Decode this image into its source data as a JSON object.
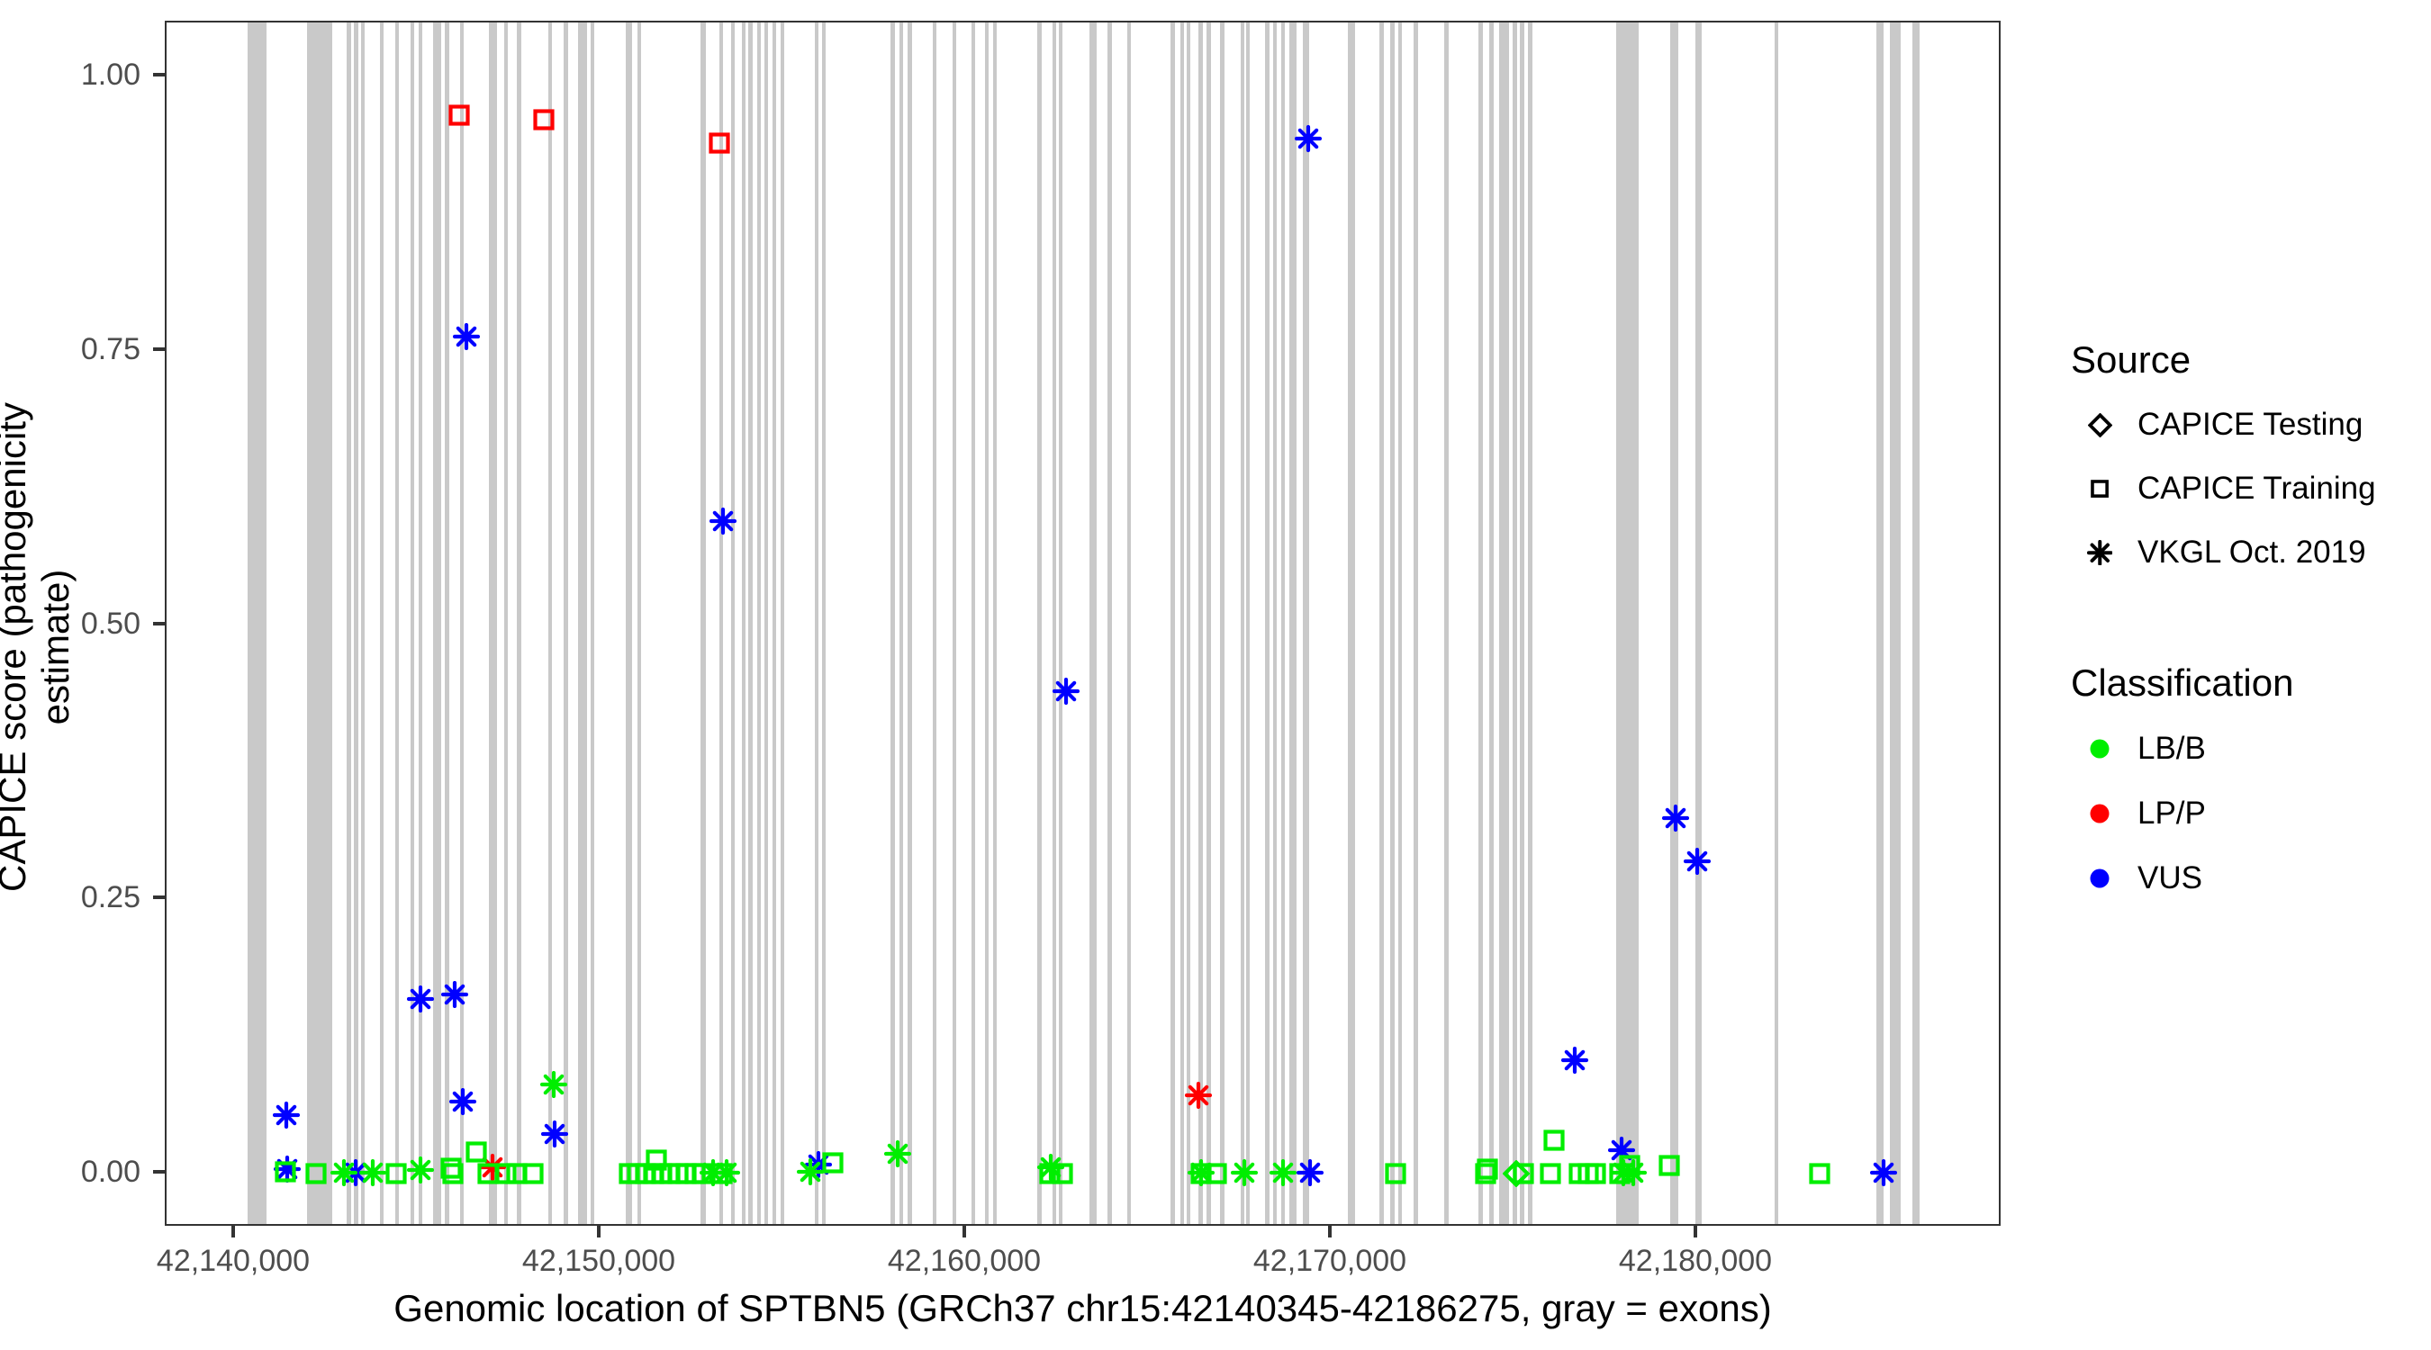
{
  "chart_data": {
    "type": "scatter",
    "title": "",
    "xlabel": "Genomic location of SPTBN5 (GRCh37 chr15:42140345-42186275, gray = exons)",
    "ylabel": "CAPICE score (pathogenicity estimate)",
    "x_domain": [
      42138128,
      42188350
    ],
    "y_domain": [
      -0.0492,
      1.0492
    ],
    "grid": false,
    "x_ticks": [
      {
        "pos": 42140000,
        "label": "42,140,000"
      },
      {
        "pos": 42150000,
        "label": "42,150,000"
      },
      {
        "pos": 42160000,
        "label": "42,160,000"
      },
      {
        "pos": 42170000,
        "label": "42,170,000"
      },
      {
        "pos": 42180000,
        "label": "42,180,000"
      }
    ],
    "y_ticks": [
      {
        "value": 0.0,
        "label": "0.00"
      },
      {
        "value": 0.25,
        "label": "0.25"
      },
      {
        "value": 0.5,
        "label": "0.50"
      },
      {
        "value": 0.75,
        "label": "0.75"
      },
      {
        "value": 1.0,
        "label": "1.00"
      }
    ],
    "exon_color": "#C9C9C9",
    "classification_colors": {
      "LB/B": "#00EE00",
      "LP/P": "#FF0000",
      "VUS": "#0000FF"
    },
    "marker_by_source": {
      "testing": "diamond",
      "training": "square",
      "vkgl": "asterisk"
    },
    "exons": [
      [
        42140350,
        42140860
      ],
      [
        42141970,
        42142660
      ],
      [
        42143050,
        42143180
      ],
      [
        42143250,
        42143375
      ],
      [
        42143450,
        42143550
      ],
      [
        42143965,
        42144065
      ],
      [
        42144385,
        42144460
      ],
      [
        42144800,
        42144900
      ],
      [
        42145025,
        42145125
      ],
      [
        42145420,
        42145640
      ],
      [
        42145740,
        42145860
      ],
      [
        42146155,
        42146255
      ],
      [
        42146945,
        42147165
      ],
      [
        42147365,
        42147465
      ],
      [
        42147710,
        42147830
      ],
      [
        42148570,
        42148670
      ],
      [
        42148990,
        42149115
      ],
      [
        42149385,
        42149630
      ],
      [
        42149730,
        42149830
      ],
      [
        42150690,
        42150860
      ],
      [
        42151010,
        42151110
      ],
      [
        42152735,
        42152880
      ],
      [
        42153250,
        42153350
      ],
      [
        42153570,
        42153670
      ],
      [
        42153865,
        42153965
      ],
      [
        42154040,
        42154165
      ],
      [
        42154285,
        42154385
      ],
      [
        42154485,
        42154555
      ],
      [
        42154705,
        42154805
      ],
      [
        42154925,
        42155025
      ],
      [
        42155860,
        42155960
      ],
      [
        42156060,
        42156155
      ],
      [
        42157930,
        42158055
      ],
      [
        42158175,
        42158275
      ],
      [
        42158400,
        42158520
      ],
      [
        42159090,
        42159190
      ],
      [
        42159630,
        42159730
      ],
      [
        42160150,
        42160245
      ],
      [
        42160515,
        42160615
      ],
      [
        42160740,
        42160835
      ],
      [
        42161945,
        42162070
      ],
      [
        42162365,
        42162465
      ],
      [
        42162535,
        42162635
      ],
      [
        42163375,
        42163570
      ],
      [
        42163865,
        42163990
      ],
      [
        42164410,
        42164505
      ],
      [
        42165590,
        42165715
      ],
      [
        42165860,
        42165960
      ],
      [
        42166035,
        42166130
      ],
      [
        42166355,
        42166480
      ],
      [
        42166575,
        42166700
      ],
      [
        42166945,
        42167070
      ],
      [
        42167510,
        42167610
      ],
      [
        42167660,
        42167760
      ],
      [
        42168175,
        42168300
      ],
      [
        42168400,
        42168495
      ],
      [
        42168620,
        42168720
      ],
      [
        42168840,
        42169040
      ],
      [
        42169210,
        42169385
      ],
      [
        42170445,
        42170640
      ],
      [
        42171305,
        42171430
      ],
      [
        42171600,
        42171725
      ],
      [
        42171825,
        42171920
      ],
      [
        42172240,
        42172365
      ],
      [
        42173080,
        42173200
      ],
      [
        42174015,
        42174140
      ],
      [
        42174310,
        42174435
      ],
      [
        42174580,
        42174850
      ],
      [
        42174950,
        42175075
      ],
      [
        42175150,
        42175270
      ],
      [
        42175370,
        42175490
      ],
      [
        42177785,
        42178400
      ],
      [
        42179260,
        42179485
      ],
      [
        42179950,
        42180125
      ],
      [
        42182120,
        42182190
      ],
      [
        42184900,
        42185100
      ],
      [
        42185270,
        42185565
      ],
      [
        42185885,
        42186085
      ]
    ],
    "points_format": [
      "genomic_position",
      "capice_score",
      "source",
      "classification"
    ],
    "points": [
      [
        42141404,
        0.053,
        "vkgl",
        "VUS"
      ],
      [
        42141429,
        0.004,
        "vkgl",
        "VUS"
      ],
      [
        42143300,
        0.001,
        "vkgl",
        "VUS"
      ],
      [
        42145074,
        0.159,
        "vkgl",
        "VUS"
      ],
      [
        42146010,
        0.163,
        "vkgl",
        "VUS"
      ],
      [
        42146232,
        0.066,
        "vkgl",
        "VUS"
      ],
      [
        42146330,
        0.763,
        "vkgl",
        "VUS"
      ],
      [
        42148744,
        0.036,
        "vkgl",
        "VUS"
      ],
      [
        42153350,
        0.595,
        "vkgl",
        "VUS"
      ],
      [
        42155961,
        0.008,
        "vkgl",
        "VUS"
      ],
      [
        42162734,
        0.44,
        "vkgl",
        "VUS"
      ],
      [
        42169360,
        0.943,
        "vkgl",
        "VUS"
      ],
      [
        42169409,
        0.001,
        "vkgl",
        "VUS"
      ],
      [
        42176650,
        0.103,
        "vkgl",
        "VUS"
      ],
      [
        42177931,
        0.021,
        "vkgl",
        "VUS"
      ],
      [
        42179409,
        0.324,
        "vkgl",
        "VUS"
      ],
      [
        42180000,
        0.285,
        "vkgl",
        "VUS"
      ],
      [
        42185098,
        0.001,
        "vkgl",
        "VUS"
      ],
      [
        42147044,
        0.006,
        "vkgl",
        "LP/P"
      ],
      [
        42166355,
        0.071,
        "vkgl",
        "LP/P"
      ],
      [
        42142980,
        0.001,
        "vkgl",
        "LB/B"
      ],
      [
        42143768,
        0.001,
        "vkgl",
        "LB/B"
      ],
      [
        42145074,
        0.003,
        "vkgl",
        "LB/B"
      ],
      [
        42148719,
        0.081,
        "vkgl",
        "LB/B"
      ],
      [
        42153079,
        0.001,
        "vkgl",
        "LB/B"
      ],
      [
        42153448,
        0.001,
        "vkgl",
        "LB/B"
      ],
      [
        42155739,
        0.002,
        "vkgl",
        "LB/B"
      ],
      [
        42158128,
        0.018,
        "vkgl",
        "LB/B"
      ],
      [
        42162315,
        0.006,
        "vkgl",
        "LB/B"
      ],
      [
        42166429,
        0.001,
        "vkgl",
        "LB/B"
      ],
      [
        42167611,
        0.001,
        "vkgl",
        "LB/B"
      ],
      [
        42168670,
        0.001,
        "vkgl",
        "LB/B"
      ],
      [
        42177980,
        0.001,
        "vkgl",
        "LB/B"
      ],
      [
        42178252,
        0.001,
        "vkgl",
        "LB/B"
      ],
      [
        42146133,
        0.965,
        "training",
        "LP/P"
      ],
      [
        42148449,
        0.961,
        "training",
        "LP/P"
      ],
      [
        42153251,
        0.939,
        "training",
        "LP/P"
      ],
      [
        42141380,
        0.002,
        "training",
        "LB/B"
      ],
      [
        42142217,
        0.0,
        "training",
        "LB/B"
      ],
      [
        42144409,
        0.0,
        "training",
        "LB/B"
      ],
      [
        42145900,
        0.005,
        "training",
        "LB/B"
      ],
      [
        42145970,
        0.0,
        "training",
        "LB/B"
      ],
      [
        42146601,
        0.02,
        "training",
        "LB/B"
      ],
      [
        42146921,
        0.0,
        "training",
        "LB/B"
      ],
      [
        42147413,
        0.0,
        "training",
        "LB/B"
      ],
      [
        42147709,
        0.0,
        "training",
        "LB/B"
      ],
      [
        42148152,
        0.0,
        "training",
        "LB/B"
      ],
      [
        42150788,
        0.0,
        "training",
        "LB/B"
      ],
      [
        42151010,
        0.0,
        "training",
        "LB/B"
      ],
      [
        42151232,
        0.0,
        "training",
        "LB/B"
      ],
      [
        42151453,
        0.0,
        "training",
        "LB/B"
      ],
      [
        42151527,
        0.012,
        "training",
        "LB/B"
      ],
      [
        42151675,
        0.0,
        "training",
        "LB/B"
      ],
      [
        42151897,
        0.0,
        "training",
        "LB/B"
      ],
      [
        42152118,
        0.0,
        "training",
        "LB/B"
      ],
      [
        42152340,
        0.0,
        "training",
        "LB/B"
      ],
      [
        42152586,
        0.0,
        "training",
        "LB/B"
      ],
      [
        42152783,
        0.0,
        "training",
        "LB/B"
      ],
      [
        42153325,
        0.0,
        "training",
        "LB/B"
      ],
      [
        42156355,
        0.01,
        "training",
        "LB/B"
      ],
      [
        42162291,
        0.0,
        "training",
        "LB/B"
      ],
      [
        42162635,
        0.0,
        "training",
        "LB/B"
      ],
      [
        42166429,
        0.0,
        "training",
        "LB/B"
      ],
      [
        42166847,
        0.0,
        "training",
        "LB/B"
      ],
      [
        42171749,
        0.0,
        "training",
        "LB/B"
      ],
      [
        42174212,
        0.0,
        "training",
        "LB/B"
      ],
      [
        42174261,
        0.004,
        "training",
        "LB/B"
      ],
      [
        42175246,
        0.0,
        "training",
        "LB/B"
      ],
      [
        42175985,
        0.0,
        "training",
        "LB/B"
      ],
      [
        42176084,
        0.03,
        "training",
        "LB/B"
      ],
      [
        42176773,
        0.0,
        "training",
        "LB/B"
      ],
      [
        42177020,
        0.0,
        "training",
        "LB/B"
      ],
      [
        42177217,
        0.0,
        "training",
        "LB/B"
      ],
      [
        42177882,
        0.0,
        "training",
        "LB/B"
      ],
      [
        42178153,
        0.007,
        "training",
        "LB/B"
      ],
      [
        42179236,
        0.007,
        "training",
        "LB/B"
      ],
      [
        42183350,
        0.0,
        "training",
        "LB/B"
      ],
      [
        42175049,
        0.0,
        "testing",
        "LB/B"
      ]
    ],
    "legend": {
      "source": {
        "title": "Source",
        "items": [
          {
            "key": "testing",
            "label": "CAPICE Testing"
          },
          {
            "key": "training",
            "label": "CAPICE Training"
          },
          {
            "key": "vkgl",
            "label": "VKGL Oct. 2019"
          }
        ]
      },
      "classification": {
        "title": "Classification",
        "items": [
          {
            "key": "LB/B",
            "label": "LB/B",
            "color": "#00EE00"
          },
          {
            "key": "LP/P",
            "label": "LP/P",
            "color": "#FF0000"
          },
          {
            "key": "VUS",
            "label": "VUS",
            "color": "#0000FF"
          }
        ]
      }
    }
  }
}
